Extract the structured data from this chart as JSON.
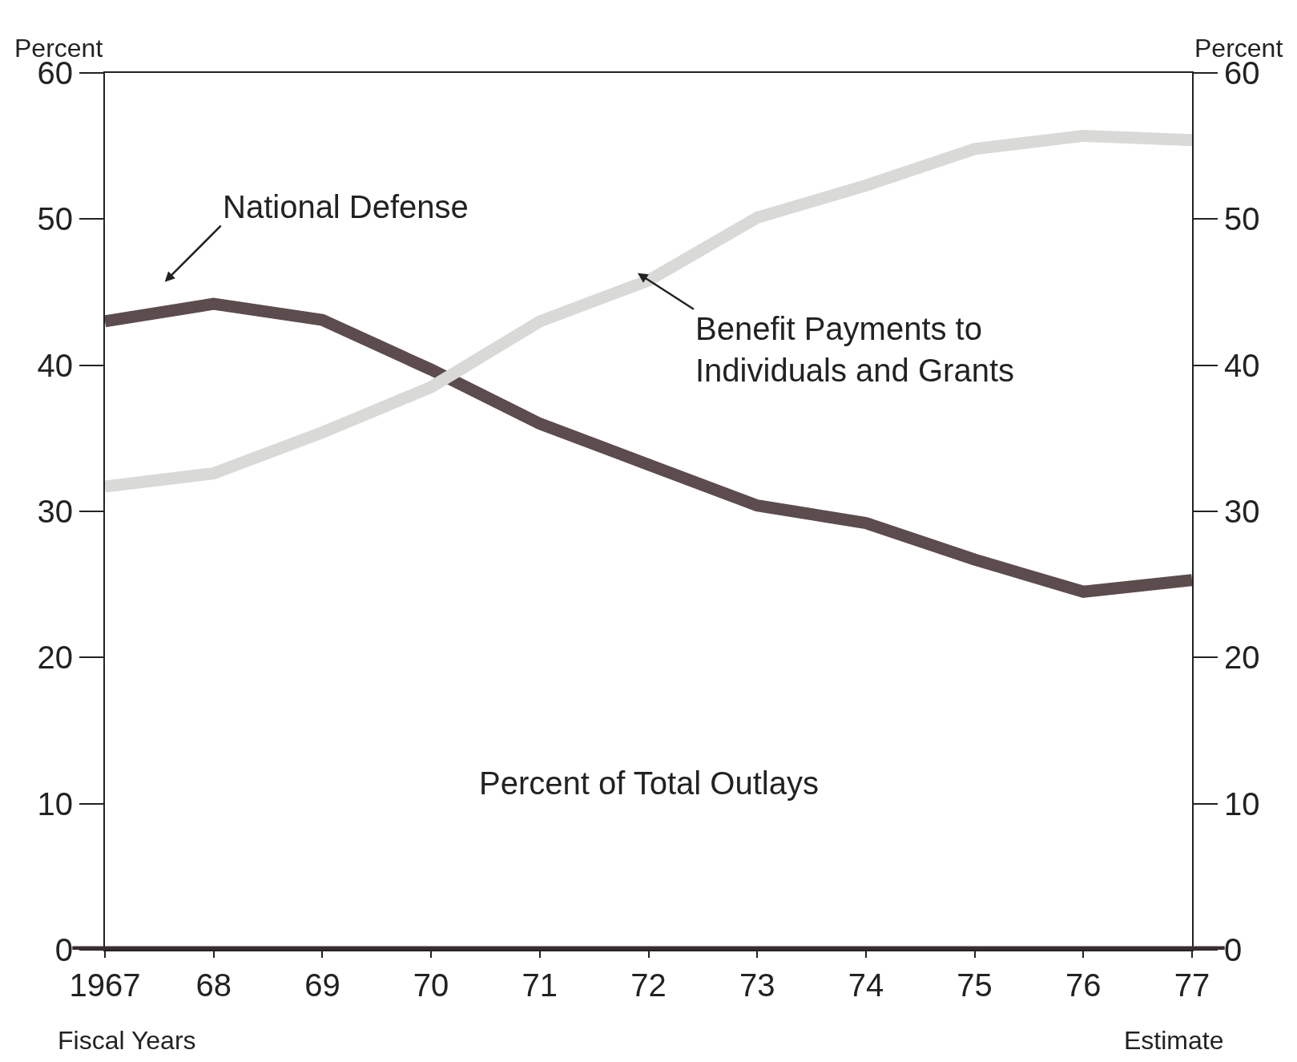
{
  "chart_data": {
    "type": "line",
    "xlabel": "Fiscal Years",
    "ylabel": "Percent",
    "y2label": "Percent",
    "categories": [
      "1967",
      "68",
      "69",
      "70",
      "71",
      "72",
      "73",
      "74",
      "75",
      "76",
      "77"
    ],
    "series": [
      {
        "color": "#5c4c4e",
        "values": [
          43.0,
          44.2,
          43.1,
          39.7,
          36.0,
          33.2,
          30.4,
          29.2,
          26.7,
          24.5,
          25.3
        ]
      },
      {
        "color": "#d9d9d7",
        "values": [
          31.7,
          32.6,
          35.4,
          38.5,
          43.0,
          45.8,
          50.1,
          52.3,
          54.8,
          55.7,
          55.4
        ]
      }
    ],
    "ylim": [
      0,
      60
    ],
    "yticks": [
      0,
      10,
      20,
      30,
      40,
      50,
      60
    ],
    "y2lim": [
      0,
      60
    ],
    "y2ticks": [
      0,
      10,
      20,
      30,
      40,
      50,
      60
    ],
    "marker": "none",
    "line_style": "solid",
    "annotations": [
      {
        "text": "National Defense",
        "x": "68",
        "y": 44.2
      },
      {
        "text": "Benefit Payments to\nIndividuals and Grants",
        "x": "72",
        "y": 45.8
      },
      "Percent of Total Outlays",
      "Estimate"
    ]
  }
}
